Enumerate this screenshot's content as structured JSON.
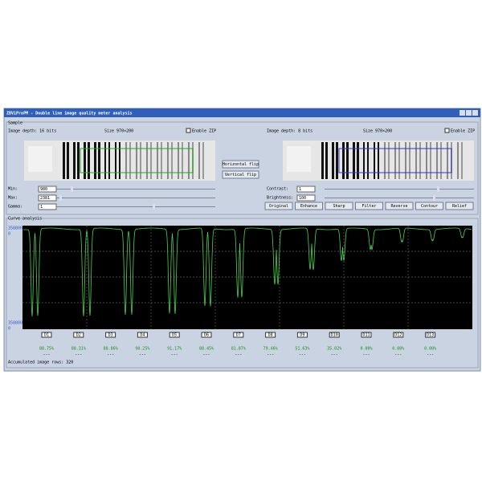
{
  "window": {
    "title": "ZBViProPM - Double line image quality meter analysis"
  },
  "sample": {
    "label": "Sample",
    "left": {
      "depth": "Image depth: 16 bits",
      "size": "Size 970×200",
      "zip": "Enable ZIP",
      "fields": [
        {
          "label": "Min:",
          "value": "980"
        },
        {
          "label": "Max:",
          "value": "2381"
        },
        {
          "label": "Gamma:",
          "value": "1"
        }
      ]
    },
    "flip_buttons": [
      "Horizontal flip",
      "Vertical flip"
    ],
    "right": {
      "depth": "Image depth: 8 bits",
      "size": "Size 970×200",
      "zip": "Enable ZIP",
      "fields": [
        {
          "label": "Contrast:",
          "value": "1"
        },
        {
          "label": "Brightness:",
          "value": "100"
        }
      ],
      "buttons": [
        "Original",
        "Enhance",
        "Sharp",
        "Filter",
        "Reverse",
        "Contour",
        "Relief"
      ]
    }
  },
  "curve": {
    "label": "Curve analysis",
    "axis_labels": [
      "358800",
      "0",
      "358800",
      "0"
    ],
    "results": [
      {
        "pair": "D1",
        "value": "88.75%",
        "status": "---"
      },
      {
        "pair": "D2",
        "value": "88.31%",
        "status": "---"
      },
      {
        "pair": "D3",
        "value": "88.86%",
        "status": "---"
      },
      {
        "pair": "D4",
        "value": "90.25%",
        "status": "---"
      },
      {
        "pair": "D5",
        "value": "91.17%",
        "status": "---"
      },
      {
        "pair": "D6",
        "value": "88.45%",
        "status": "---"
      },
      {
        "pair": "D7",
        "value": "81.87%",
        "status": "---"
      },
      {
        "pair": "D8",
        "value": "79.46%",
        "status": "---"
      },
      {
        "pair": "D9",
        "value": "51.63%",
        "status": "---"
      },
      {
        "pair": "D10",
        "value": "35.02%",
        "status": "---"
      },
      {
        "pair": "D11",
        "value": "0.00%",
        "status": "---"
      },
      {
        "pair": "D12",
        "value": "0.00%",
        "status": "---"
      },
      {
        "pair": "D13",
        "value": "0.00%",
        "status": "---"
      }
    ]
  },
  "footer": "Accumulated image rows: 320"
}
